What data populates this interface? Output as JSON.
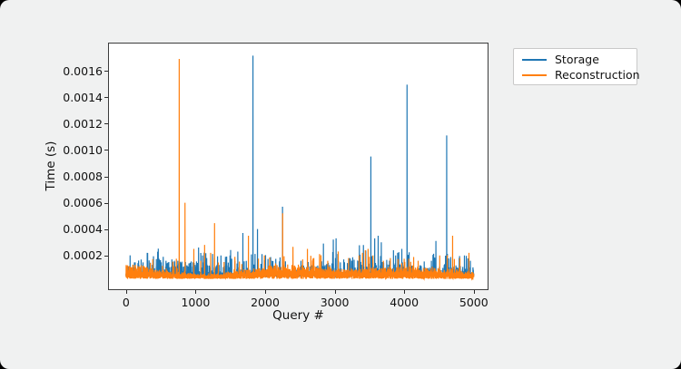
{
  "window": {
    "background": "#f0f1f1",
    "outer_background": "#000000"
  },
  "chart_data": {
    "type": "line",
    "title": "",
    "xlabel": "Query #",
    "ylabel": "Time (s)",
    "grid": false,
    "plot_bg": "#ffffff",
    "xlim": [
      -245,
      5198
    ],
    "ylim": [
      -5.6e-05,
      0.001807
    ],
    "xticks": {
      "values": [
        0,
        1000,
        2000,
        3000,
        4000,
        5000
      ],
      "labels": [
        "0",
        "1000",
        "2000",
        "3000",
        "4000",
        "5000"
      ]
    },
    "yticks": {
      "values": [
        0.0002,
        0.0004,
        0.0006,
        0.0008,
        0.001,
        0.0012,
        0.0014,
        0.0016
      ],
      "labels": [
        "0.0002",
        "0.0004",
        "0.0006",
        "0.0008",
        "0.0010",
        "0.0012",
        "0.0014",
        "0.0016"
      ]
    },
    "legend": {
      "position": "outside-upper-right",
      "entries": [
        {
          "label": "Storage"
        },
        {
          "label": "Reconstruction"
        }
      ]
    },
    "n_points": 5000,
    "seed": 1337,
    "series": [
      {
        "name": "Storage",
        "color": "#1f77b4",
        "noise": {
          "base": 4e-05,
          "amp": 3e-05,
          "band_prob": 0.1,
          "band_amp": 8e-05,
          "spike_prob": 0.03,
          "spike_amp": 0.00017
        },
        "spikes": [
          [
            305,
            0.00022
          ],
          [
            535,
            0.00019
          ],
          [
            575,
            0.00016
          ],
          [
            615,
            0.00015
          ],
          [
            660,
            0.00017
          ],
          [
            700,
            0.00015
          ],
          [
            745,
            0.00016
          ],
          [
            800,
            0.00014
          ],
          [
            855,
            0.00015
          ],
          [
            905,
            0.00014
          ],
          [
            1043,
            0.00026
          ],
          [
            1100,
            0.0002
          ],
          [
            1160,
            0.00018
          ],
          [
            1365,
            0.0002
          ],
          [
            1430,
            0.00019
          ],
          [
            1495,
            0.0002
          ],
          [
            1680,
            0.00037
          ],
          [
            1825,
            0.001715
          ],
          [
            1890,
            0.0004
          ],
          [
            1955,
            0.00021
          ],
          [
            2100,
            0.00016
          ],
          [
            2250,
            0.00057
          ],
          [
            2620,
            0.00015
          ],
          [
            2838,
            0.00029
          ],
          [
            2980,
            0.00032
          ],
          [
            3020,
            0.00033
          ],
          [
            3130,
            0.00017
          ],
          [
            3245,
            0.00016
          ],
          [
            3520,
            0.00095
          ],
          [
            3575,
            0.00033
          ],
          [
            3625,
            0.00035
          ],
          [
            3670,
            0.0003
          ],
          [
            3845,
            0.00024
          ],
          [
            3905,
            0.00022
          ],
          [
            3965,
            0.00025
          ],
          [
            4040,
            0.001495
          ],
          [
            4390,
            0.00016
          ],
          [
            4455,
            0.00031
          ],
          [
            4610,
            0.00111
          ],
          [
            4790,
            0.00018
          ],
          [
            4865,
            0.0002
          ],
          [
            4950,
            0.00016
          ]
        ]
      },
      {
        "name": "Reconstruction",
        "color": "#ff7f0e",
        "noise": {
          "base": 2.2e-05,
          "amp": 5e-05,
          "band_prob": 0.35,
          "band_amp": 4e-05,
          "spike_prob": 0.012,
          "spike_amp": 0.00016
        },
        "spikes": [
          [
            100,
            0.00013
          ],
          [
            250,
            0.00012
          ],
          [
            765,
            0.00169
          ],
          [
            848,
            0.0006
          ],
          [
            975,
            0.00025
          ],
          [
            1074,
            0.00016
          ],
          [
            1130,
            0.00028
          ],
          [
            1217,
            0.00022
          ],
          [
            1273,
            0.000445
          ],
          [
            1410,
            0.00015
          ],
          [
            1565,
            0.00019
          ],
          [
            1760,
            0.00035
          ],
          [
            1990,
            0.0002
          ],
          [
            2150,
            0.00014
          ],
          [
            2252,
            0.00052
          ],
          [
            2400,
            0.000265
          ],
          [
            2540,
            0.00017
          ],
          [
            2700,
            0.00018
          ],
          [
            2782,
            0.00021
          ],
          [
            2900,
            0.00016
          ],
          [
            3051,
            0.00023
          ],
          [
            3200,
            0.00018
          ],
          [
            3350,
            0.0002
          ],
          [
            3400,
            0.00022
          ],
          [
            3440,
            0.00024
          ],
          [
            3480,
            0.00025
          ],
          [
            3550,
            0.0002
          ],
          [
            3700,
            0.00016
          ],
          [
            3800,
            0.00018
          ],
          [
            4065,
            0.000175
          ],
          [
            4200,
            0.00016
          ],
          [
            4510,
            0.0002
          ],
          [
            4695,
            0.00035
          ],
          [
            4800,
            0.00018
          ],
          [
            4930,
            0.00022
          ]
        ]
      }
    ]
  }
}
